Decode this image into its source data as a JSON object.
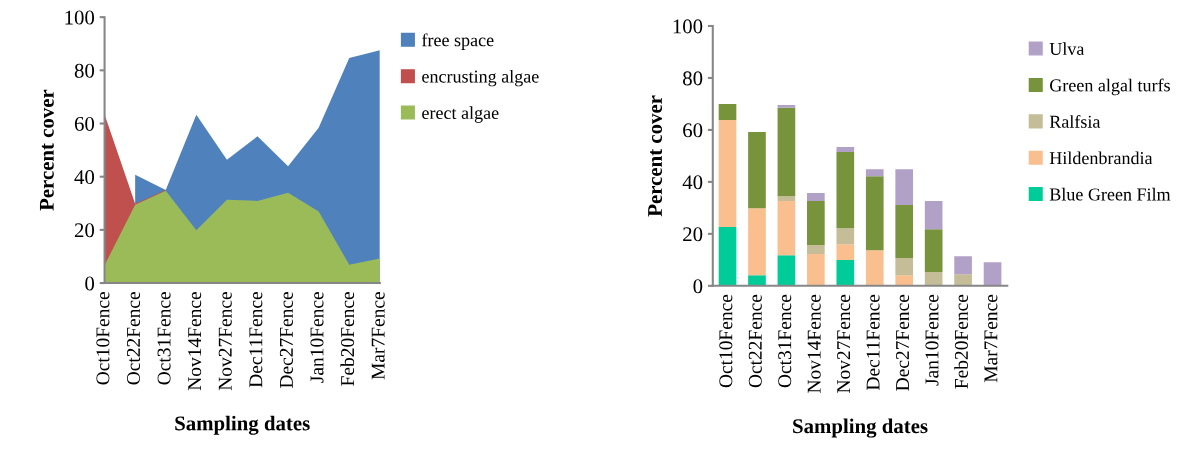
{
  "chart_data": [
    {
      "type": "area",
      "xlabel": "Sampling dates",
      "ylabel": "Percent cover",
      "categories": [
        "Oct10Fence",
        "Oct22Fence",
        "Oct31Fence",
        "Nov14Fence",
        "Nov27Fence",
        "Dec11Fence",
        "Dec27Fence",
        "Jan10Fence",
        "Feb20Fence",
        "Mar7Fence"
      ],
      "series": [
        {
          "name": "free space",
          "color": "#4f81bd",
          "values": [
            null,
            40.7,
            35,
            63.3,
            46.4,
            55.2,
            43.9,
            58.4,
            84.6,
            87.6
          ]
        },
        {
          "name": "encrusting algae",
          "color": "#c0504d",
          "values": [
            63.4,
            29.8,
            35,
            null,
            null,
            null,
            null,
            null,
            null,
            null
          ]
        },
        {
          "name": "erect algae",
          "color": "#9bbb59",
          "values": [
            6.7,
            29.4,
            34.7,
            19.9,
            31.3,
            30.9,
            34,
            26.9,
            6.9,
            9.2
          ]
        }
      ],
      "ylim": [
        0,
        100
      ],
      "yticks": [
        0,
        20,
        40,
        60,
        80,
        100
      ],
      "grid": false,
      "legend": "right"
    },
    {
      "type": "bar",
      "stacked": true,
      "xlabel": "Sampling dates",
      "ylabel": "Percent cover",
      "categories": [
        "Oct10Fence",
        "Oct22Fence",
        "Oct31Fence",
        "Nov14Fence",
        "Nov27Fence",
        "Dec11Fence",
        "Dec27Fence",
        "Jan10Fence",
        "Feb20Fence",
        "Mar7Fence"
      ],
      "series": [
        {
          "name": "Blue Green Film",
          "color": "#00cc99",
          "values": [
            22.6,
            4.1,
            11.8,
            0,
            9.9,
            0,
            0,
            0,
            0,
            0
          ]
        },
        {
          "name": "Hildenbrandia",
          "color": "#f9bf8f",
          "values": [
            41.2,
            25.8,
            20.8,
            12.2,
            6.1,
            13.7,
            4.1,
            0,
            0,
            0
          ]
        },
        {
          "name": "Ralfsia",
          "color": "#c4bd97",
          "values": [
            0,
            0,
            1.9,
            3.5,
            6.2,
            0,
            6.6,
            5.3,
            4.5,
            0
          ]
        },
        {
          "name": "Green algal turfs",
          "color": "#77933c",
          "values": [
            6.2,
            29.3,
            34,
            16.9,
            29.3,
            28.5,
            20.4,
            16.5,
            0,
            0
          ]
        },
        {
          "name": "Ulva",
          "color": "#b2a1c7",
          "values": [
            0,
            0,
            1.1,
            3.1,
            1.9,
            2.7,
            13.8,
            10.8,
            6.9,
            9.1
          ]
        }
      ],
      "ylim": [
        0,
        100
      ],
      "yticks": [
        0,
        20,
        40,
        60,
        80,
        100
      ],
      "grid": false,
      "legend": "right"
    }
  ]
}
